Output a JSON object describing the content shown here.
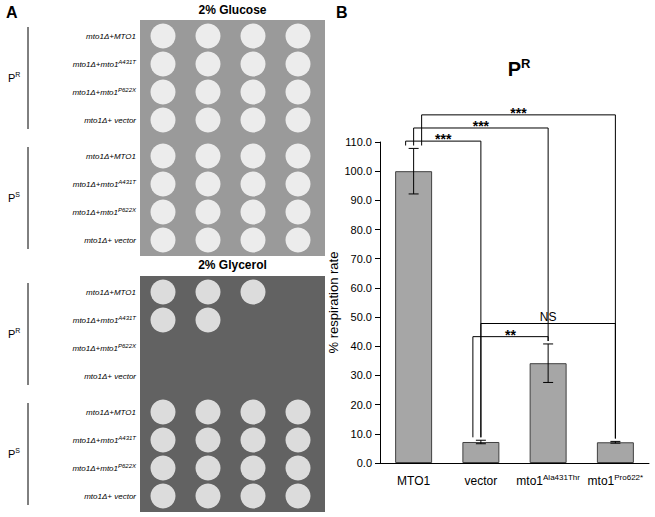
{
  "panel_labels": [
    "A",
    "B"
  ],
  "plates": [
    {
      "title": "2% Glucose",
      "groups": [
        {
          "label": "PR",
          "superscript": "R",
          "rows": [
            {
              "label": "mto1Δ+MTO1",
              "spots": 4
            },
            {
              "label": "mto1Δ+mto1A431T",
              "superscript": "A431T",
              "spots": 4
            },
            {
              "label": "mto1Δ+mto1P622X",
              "superscript": "P622X",
              "spots": 4
            },
            {
              "label": "mto1Δ+ vector",
              "spots": 4
            }
          ]
        },
        {
          "label": "PS",
          "superscript": "S",
          "rows": [
            {
              "label": "mto1Δ+MTO1",
              "spots": 4
            },
            {
              "label": "mto1Δ+mto1A431T",
              "superscript": "A431T",
              "spots": 4
            },
            {
              "label": "mto1Δ+mto1P622X",
              "superscript": "P622X",
              "spots": 4
            },
            {
              "label": "mto1Δ+ vector",
              "spots": 4
            }
          ]
        }
      ]
    },
    {
      "title": "2% Glycerol",
      "groups": [
        {
          "label": "PR",
          "superscript": "R",
          "rows": [
            {
              "label": "mto1Δ+MTO1",
              "spots": 3
            },
            {
              "label": "mto1Δ+mto1A431T",
              "superscript": "A431T",
              "spots": 2
            },
            {
              "label": "mto1Δ+mto1P622X",
              "superscript": "P622X",
              "spots": 0
            },
            {
              "label": "mto1Δ+ vector",
              "spots": 0
            }
          ]
        },
        {
          "label": "PS",
          "superscript": "S",
          "rows": [
            {
              "label": "mto1Δ+MTO1",
              "spots": 4
            },
            {
              "label": "mto1Δ+mto1A431T",
              "superscript": "A431T",
              "spots": 4
            },
            {
              "label": "mto1Δ+mto1P622X",
              "superscript": "P622X",
              "spots": 4
            },
            {
              "label": "mto1Δ+ vector",
              "spots": 4
            }
          ]
        }
      ]
    }
  ],
  "chart_data": {
    "type": "bar",
    "title": "PR",
    "title_superscript": "R",
    "y_label": "% respiration rate",
    "categories": [
      "MTO1",
      "vector",
      "mto1Ala431Thr",
      "mto1Pro622*"
    ],
    "category_superscripts": [
      null,
      null,
      "Ala431Thr",
      "Pro622*"
    ],
    "values": [
      100.0,
      7.2,
      34.2,
      7.1
    ],
    "errors": [
      7.8,
      0.6,
      6.6,
      0.3
    ],
    "color": "#a6a6a6",
    "ylim": [
      0,
      110
    ],
    "yticks": [
      {
        "value": 0,
        "label": "0.0"
      },
      {
        "value": 10,
        "label": "10.0"
      },
      {
        "value": 20,
        "label": "20.0"
      },
      {
        "value": 30,
        "label": "30.0"
      },
      {
        "value": 40,
        "label": "40.0"
      },
      {
        "value": 50,
        "label": "50.0"
      },
      {
        "value": 60,
        "label": "60.0"
      },
      {
        "value": 70,
        "label": "70.0"
      },
      {
        "value": 80,
        "label": "80.0"
      },
      {
        "value": 90,
        "label": "90.0"
      },
      {
        "value": 100,
        "label": "100.0"
      },
      {
        "value": 110,
        "label": "110.0"
      }
    ],
    "grid": false,
    "comparisons": [
      {
        "from": "MTO1",
        "to": "vector",
        "label": "***"
      },
      {
        "from": "MTO1",
        "to": "mto1Ala431Thr",
        "label": "***"
      },
      {
        "from": "MTO1",
        "to": "mto1Pro622*",
        "label": "***"
      },
      {
        "from": "vector",
        "to": "mto1Ala431Thr",
        "label": "**"
      },
      {
        "from": "vector",
        "to": "mto1Pro622*",
        "label": "NS"
      }
    ]
  }
}
